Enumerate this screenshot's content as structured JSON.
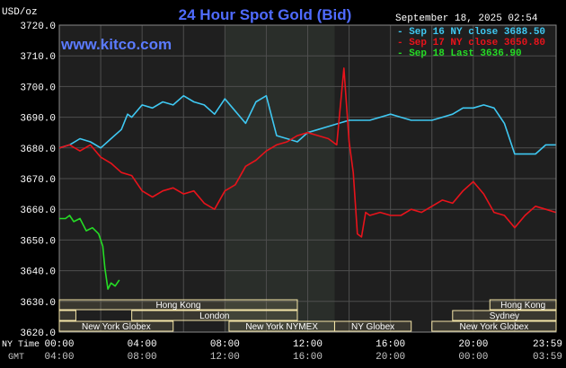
{
  "chart_data": {
    "type": "line",
    "title": "24 Hour Spot Gold (Bid)",
    "watermark": "www.kitco.com",
    "timestamp": "September 18, 2025 02:54",
    "ylabel": "USD/oz",
    "ylim": [
      3620,
      3720
    ],
    "y_ticks": [
      "3720.0",
      "3710.0",
      "3700.0",
      "3690.0",
      "3680.0",
      "3670.0",
      "3660.0",
      "3650.0",
      "3640.0",
      "3630.0",
      "3620.0"
    ],
    "x_axis_label_ny": "NY Time",
    "x_axis_label_gmt": "GMT",
    "x_ticks_ny": [
      "00:00",
      "04:00",
      "08:00",
      "12:00",
      "16:00",
      "20:00",
      "23:59"
    ],
    "x_ticks_gmt": [
      "04:00",
      "08:00",
      "12:00",
      "16:00",
      "20:00",
      "00:00",
      "03:59"
    ],
    "grid": true,
    "legend_position": "top-right",
    "colors": {
      "background": "#000000",
      "plot": "#1f1f1f",
      "highlight": "#2a2e2a",
      "grid": "#4e4e4e",
      "title": "#4f6bff",
      "watermark": "#5b7bff",
      "text": "#ffffff",
      "axis_text": "#d0d0d0",
      "session_fill": "#f5e6a8"
    },
    "series": [
      {
        "name": "Sep 16 NY close 3688.50",
        "color": "#3fc8f2",
        "hours": [
          0,
          0.5,
          1,
          1.5,
          2,
          2.5,
          3,
          3.3,
          3.5,
          4,
          4.5,
          5,
          5.5,
          6,
          6.5,
          7,
          7.5,
          8,
          8.5,
          9,
          9.5,
          10,
          10.5,
          11,
          11.5,
          12,
          12.5,
          13,
          13.5,
          14,
          14.5,
          15,
          15.5,
          16,
          16.5,
          17,
          17.5,
          18,
          18.5,
          19,
          19.5,
          20,
          20.5,
          21,
          21.5,
          22,
          22.5,
          23,
          23.5,
          23.98
        ],
        "values": [
          3680,
          3681,
          3683,
          3682,
          3680,
          3683,
          3686,
          3691,
          3690,
          3694,
          3693,
          3695,
          3694,
          3697,
          3695,
          3694,
          3691,
          3696,
          3692,
          3688,
          3695,
          3697,
          3684,
          3683,
          3682,
          3685,
          3686,
          3687,
          3688,
          3689,
          3689,
          3689,
          3690,
          3691,
          3690,
          3689,
          3689,
          3689,
          3690,
          3691,
          3693,
          3693,
          3694,
          3693,
          3688,
          3678,
          3678,
          3678,
          3681,
          3681
        ]
      },
      {
        "name": "Sep 17 NY close 3650.80",
        "color": "#e8131b",
        "hours": [
          0,
          0.5,
          1,
          1.5,
          2,
          2.5,
          3,
          3.5,
          4,
          4.5,
          5,
          5.5,
          6,
          6.5,
          7,
          7.5,
          8,
          8.5,
          9,
          9.5,
          10,
          10.5,
          11,
          11.5,
          12,
          12.5,
          13,
          13.4,
          13.75,
          14,
          14.2,
          14.4,
          14.6,
          14.8,
          15,
          15.5,
          16,
          16.5,
          17,
          17.5,
          18,
          18.5,
          19,
          19.5,
          20,
          20.5,
          21,
          21.5,
          22,
          22.5,
          23,
          23.5,
          23.98
        ],
        "values": [
          3680,
          3681,
          3679,
          3681,
          3677,
          3675,
          3672,
          3671,
          3666,
          3664,
          3666,
          3667,
          3665,
          3666,
          3662,
          3660,
          3666,
          3668,
          3674,
          3676,
          3679,
          3681,
          3682,
          3684,
          3685,
          3684,
          3683,
          3681,
          3706,
          3682,
          3672,
          3652,
          3651,
          3659,
          3658,
          3659,
          3658,
          3658,
          3660,
          3659,
          3661,
          3663,
          3662,
          3666,
          3669,
          3665,
          3659,
          3658,
          3654,
          3658,
          3661,
          3660,
          3659
        ]
      },
      {
        "name": "Sep 18 Last 3636.90",
        "color": "#25dc25",
        "hours": [
          0,
          0.3,
          0.5,
          0.7,
          1,
          1.3,
          1.6,
          1.9,
          2.1,
          2.2,
          2.35,
          2.5,
          2.7,
          2.9
        ],
        "values": [
          3657,
          3657,
          3658,
          3656,
          3657,
          3653,
          3654,
          3652,
          3648,
          3641,
          3634,
          3636,
          3635,
          3637
        ]
      }
    ],
    "sessions": {
      "row1": [
        {
          "label": "Hong Kong",
          "start": 0,
          "end": 11.5
        },
        {
          "label": "Hong Kong",
          "start": 20.8,
          "end": 24
        }
      ],
      "row2": [
        {
          "label": "",
          "start": 0,
          "end": 0.8
        },
        {
          "label": "London",
          "start": 3.5,
          "end": 11.5
        },
        {
          "label": "Sydney",
          "start": 19,
          "end": 24
        }
      ],
      "row3": [
        {
          "label": "New York Globex",
          "start": 0,
          "end": 5.5
        },
        {
          "label": "New York NYMEX",
          "start": 8.2,
          "end": 13.3
        },
        {
          "label": "NY Globex",
          "start": 13.3,
          "end": 17
        },
        {
          "label": "New York Globex",
          "start": 18,
          "end": 24
        }
      ]
    }
  }
}
